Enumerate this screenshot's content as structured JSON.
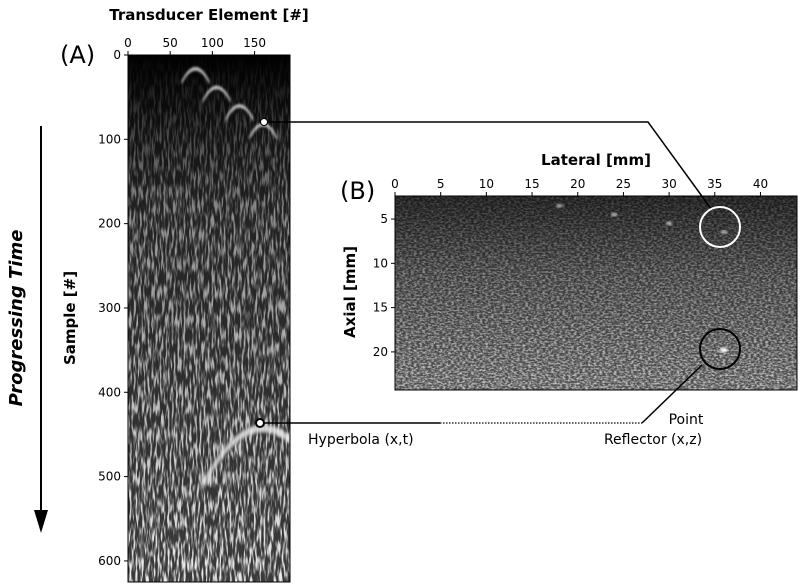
{
  "panel_a": {
    "label": "(A)",
    "x_axis_title": "Transducer Element [#]",
    "y_axis_title": "Sample [#]",
    "x_ticks": [
      0,
      50,
      100,
      150
    ],
    "y_ticks": [
      0,
      100,
      200,
      300,
      400,
      500,
      600
    ],
    "x_range": [
      0,
      192
    ],
    "y_range": [
      0,
      625
    ],
    "hyperbolas": [
      {
        "element": 80,
        "sample": 14
      },
      {
        "element": 105,
        "sample": 36
      },
      {
        "element": 132,
        "sample": 58
      },
      {
        "element": 160,
        "sample": 80
      },
      {
        "element": 160,
        "sample": 438
      }
    ]
  },
  "panel_b": {
    "label": "(B)",
    "x_axis_title": "Lateral [mm]",
    "y_axis_title": "Axial [mm]",
    "x_ticks": [
      0,
      5,
      10,
      15,
      20,
      25,
      30,
      35,
      40
    ],
    "y_ticks": [
      5,
      10,
      15,
      20
    ],
    "x_range": [
      0,
      44
    ],
    "y_range": [
      2.4,
      24.3
    ],
    "point_reflectors": [
      {
        "x": 18,
        "z": 3.5
      },
      {
        "x": 24,
        "z": 4.5
      },
      {
        "x": 30,
        "z": 5.5
      },
      {
        "x": 36,
        "z": 6.5
      },
      {
        "x": 36,
        "z": 19.8
      }
    ]
  },
  "annotations": {
    "side_label": "Progressing Time",
    "hyperbola_label": "Hyperbola (x,t)",
    "reflector_label_line1": "Point",
    "reflector_label_line2": "Reflector (x,z)"
  }
}
